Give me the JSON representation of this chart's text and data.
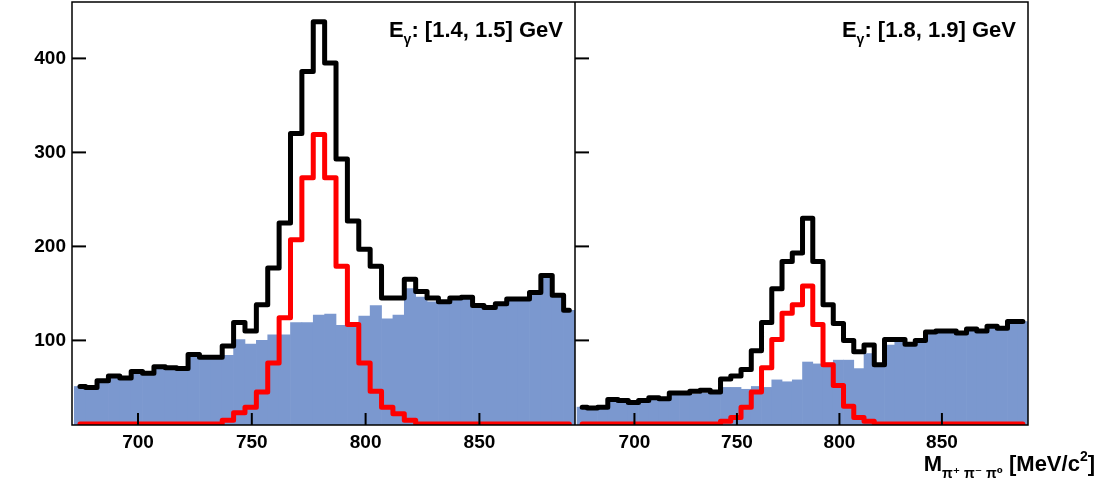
{
  "chart_data": [
    {
      "type": "histogram",
      "bins": [
        672,
        677,
        682,
        687,
        692,
        697,
        702,
        707,
        712,
        717,
        722,
        727,
        732,
        737,
        742,
        747,
        752,
        757,
        762,
        767,
        772,
        777,
        782,
        787,
        792,
        797,
        802,
        807,
        812,
        817,
        822,
        827,
        832,
        837,
        842,
        847,
        852,
        857,
        862,
        867,
        872,
        877,
        882,
        887,
        892
      ],
      "series": [
        {
          "color": "#7b98cf",
          "values": [
            51,
            50,
            57,
            62,
            60,
            67,
            65,
            72,
            71,
            70,
            83,
            81,
            80,
            84,
            101,
            96,
            100,
            106,
            106,
            119,
            119,
            127,
            128,
            116,
            116,
            126,
            137,
            123,
            127,
            155,
            146,
            141,
            141,
            144,
            146,
            137,
            135,
            139,
            144,
            144,
            151,
            169,
            148,
            132
          ]
        },
        {
          "type": "step",
          "color": "#000000",
          "x": [
            674.5,
            679.5,
            684.5,
            689.5,
            694.5,
            699.5,
            704.5,
            709.5,
            714.5,
            719.5,
            724.5,
            729.5,
            734.5,
            739.5,
            744.5,
            749.5,
            754.5,
            759.5,
            764.5,
            769.5,
            774.5,
            779.5,
            784.5,
            789.5,
            794.5,
            799.5,
            804.5,
            809.5,
            814.5,
            819.5,
            824.5,
            829.5,
            834.5,
            839.5,
            844.5,
            849.5,
            854.5,
            859.5,
            864.5,
            869.5,
            874.5,
            879.5,
            884.5,
            889.5
          ],
          "values": [
            51,
            50,
            57,
            62,
            60,
            67,
            65,
            72,
            71,
            70,
            85,
            82,
            82,
            94,
            119,
            110,
            138,
            177,
            225,
            320,
            386,
            439,
            395,
            293,
            227,
            197,
            179,
            145,
            145,
            165,
            152,
            145,
            141,
            145,
            146,
            137,
            135,
            139,
            144,
            144,
            151,
            169,
            148,
            132
          ]
        },
        {
          "type": "step",
          "color": "#ff0000",
          "x": [
            674.5,
            679.5,
            684.5,
            689.5,
            694.5,
            699.5,
            704.5,
            709.5,
            714.5,
            719.5,
            724.5,
            729.5,
            734.5,
            739.5,
            744.5,
            749.5,
            754.5,
            759.5,
            764.5,
            769.5,
            774.5,
            779.5,
            784.5,
            789.5,
            794.5,
            799.5,
            804.5,
            809.5,
            814.5,
            819.5,
            824.5,
            829.5,
            834.5,
            839.5,
            844.5,
            849.5,
            854.5,
            859.5,
            864.5,
            869.5,
            874.5,
            879.5,
            884.5,
            889.5
          ],
          "values": [
            11,
            11,
            11,
            11,
            11,
            11,
            11,
            11,
            11,
            11,
            11,
            11,
            11,
            15,
            23,
            29,
            45,
            76,
            124,
            207,
            273,
            319,
            273,
            179,
            117,
            76,
            46,
            29,
            22,
            15,
            11,
            11,
            11,
            11,
            11,
            11,
            11,
            11,
            11,
            11,
            11,
            11,
            11,
            11
          ]
        }
      ],
      "xlim": [
        671,
        892
      ],
      "xticks": [
        700,
        750,
        800,
        850
      ],
      "ylim": [
        10,
        460
      ],
      "yticks": [
        100,
        200,
        300,
        400
      ],
      "annotations": [
        "E$_{γ}$: [1.4, 1.5] GeV"
      ]
    },
    {
      "type": "histogram",
      "bins": [
        672,
        677,
        682,
        687,
        692,
        697,
        702,
        707,
        712,
        717,
        722,
        727,
        732,
        737,
        742,
        747,
        752,
        757,
        762,
        767,
        772,
        777,
        782,
        787,
        792,
        797,
        802,
        807,
        812,
        817,
        822,
        827,
        832,
        837,
        842,
        847,
        852,
        857,
        862,
        867,
        872,
        877,
        882,
        887,
        892
      ],
      "series": [
        {
          "color": "#7b98cf",
          "values": [
            29,
            28,
            29,
            37,
            36,
            34,
            36,
            39,
            38,
            44,
            44,
            43,
            44,
            45,
            50,
            50,
            48,
            51,
            50,
            58,
            56,
            58,
            77,
            75,
            76,
            79,
            79,
            70,
            86,
            74,
            95,
            100,
            95,
            100,
            109,
            110,
            110,
            108,
            112,
            110,
            115,
            113,
            120,
            120
          ]
        },
        {
          "type": "step",
          "color": "#000000",
          "x": [
            674.5,
            679.5,
            684.5,
            689.5,
            694.5,
            699.5,
            704.5,
            709.5,
            714.5,
            719.5,
            724.5,
            729.5,
            734.5,
            739.5,
            744.5,
            749.5,
            754.5,
            759.5,
            764.5,
            769.5,
            774.5,
            779.5,
            784.5,
            789.5,
            794.5,
            799.5,
            804.5,
            809.5,
            814.5,
            819.5,
            824.5,
            829.5,
            834.5,
            839.5,
            844.5,
            849.5,
            854.5,
            859.5,
            864.5,
            869.5,
            874.5,
            879.5,
            884.5,
            889.5
          ],
          "values": [
            29,
            28,
            29,
            37,
            36,
            34,
            36,
            39,
            38,
            44,
            44,
            46,
            47,
            45,
            59,
            62,
            69,
            89,
            119,
            155,
            184,
            193,
            230,
            184,
            138,
            118,
            100,
            88,
            95,
            74,
            101,
            101,
            96,
            100,
            109,
            110,
            110,
            108,
            112,
            110,
            115,
            113,
            120,
            120
          ]
        },
        {
          "type": "step",
          "color": "#ff0000",
          "x": [
            674.5,
            679.5,
            684.5,
            689.5,
            694.5,
            699.5,
            704.5,
            709.5,
            714.5,
            719.5,
            724.5,
            729.5,
            734.5,
            739.5,
            744.5,
            749.5,
            754.5,
            759.5,
            764.5,
            769.5,
            774.5,
            779.5,
            784.5,
            789.5,
            794.5,
            799.5,
            804.5,
            809.5,
            814.5,
            819.5,
            824.5,
            829.5,
            834.5,
            839.5,
            844.5,
            849.5,
            854.5,
            859.5,
            864.5,
            869.5,
            874.5,
            879.5,
            884.5,
            889.5
          ],
          "values": [
            11,
            11,
            11,
            11,
            11,
            11,
            11,
            11,
            11,
            11,
            11,
            11,
            11,
            11,
            14,
            18,
            29,
            45,
            71,
            101,
            129,
            138,
            158,
            117,
            74,
            52,
            30,
            18,
            14,
            11,
            11,
            11,
            11,
            11,
            11,
            11,
            11,
            11,
            11,
            11,
            11,
            11,
            11,
            11
          ]
        }
      ],
      "xlim": [
        671,
        892
      ],
      "xticks": [
        700,
        750,
        800,
        850
      ],
      "ylim": [
        10,
        460
      ],
      "yticks": [
        100,
        200,
        300,
        400
      ],
      "tick_labels": "x",
      "xlabel": "M$_{π⁺ π⁻ π⁰}$ [MeV/c$^{2}$]",
      "annotations": [
        "E$_{γ}$: [1.8, 1.9] GeV"
      ]
    }
  ]
}
